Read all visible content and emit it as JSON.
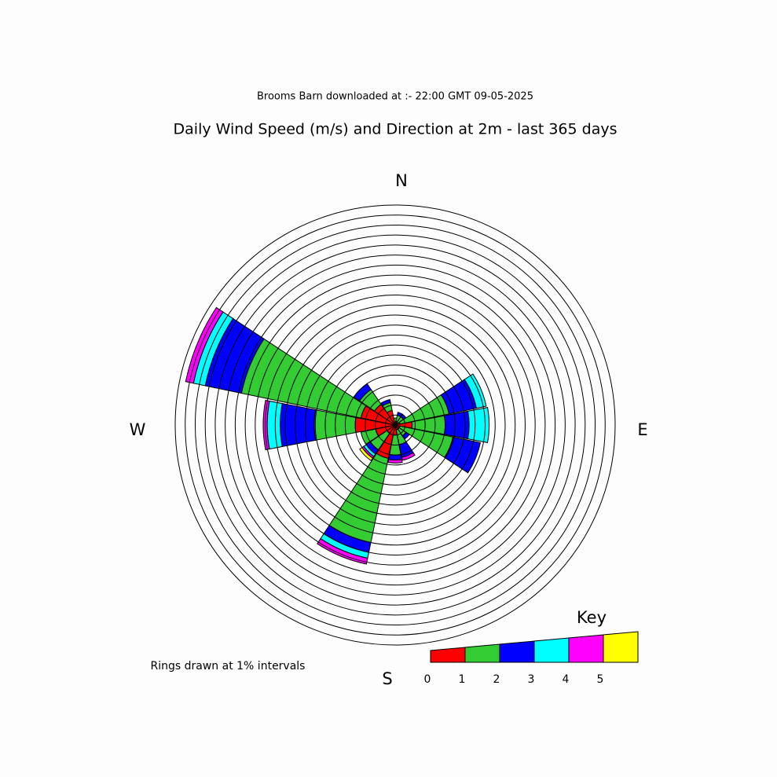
{
  "chart_data": {
    "type": "windrose",
    "subtitle": "Brooms Barn downloaded at :- 22:00 GMT 09-05-2025",
    "title": "Daily Wind Speed (m/s) and Direction at 2m - last 365 days",
    "compass": {
      "n": "N",
      "e": "E",
      "s": "S",
      "w": "W"
    },
    "note": "Rings drawn at 1% intervals",
    "categories": [
      null,
      null,
      null,
      null,
      null,
      null,
      null,
      null,
      null,
      null,
      null,
      null,
      null,
      null,
      null,
      null
    ],
    "series": [
      {
        "color": "#ff0000",
        "values": [
          0.3,
          0.4,
          0.3,
          0.5,
          1.7,
          0.5,
          0.5,
          0.5,
          1.0,
          3.4,
          1.0,
          2.0,
          4.0,
          3.5,
          2.5,
          1.5
        ]
      },
      {
        "color": "#33cc33",
        "values": [
          0.4,
          0.6,
          0.7,
          5.0,
          3.3,
          5.4,
          0.8,
          1.5,
          2.0,
          8.6,
          2.0,
          1.5,
          4.1,
          12.2,
          1.8,
          0.8
        ]
      },
      {
        "color": "#0000ff",
        "values": [
          0,
          0.3,
          0.3,
          2.8,
          2.4,
          2.8,
          0.4,
          1.3,
          0.5,
          1.0,
          0.5,
          0,
          3.4,
          3.7,
          0.7,
          0.3
        ]
      },
      {
        "color": "#00ffff",
        "values": [
          0,
          0,
          0,
          1.0,
          2.0,
          0,
          0,
          0,
          0,
          0.6,
          0.3,
          0,
          1.3,
          1.2,
          0,
          0
        ]
      },
      {
        "color": "#ff00ff",
        "values": [
          0,
          0,
          0,
          0,
          0,
          0,
          0,
          0.3,
          0.3,
          0.6,
          0.2,
          0,
          0.4,
          0.8,
          0,
          0
        ]
      },
      {
        "color": "#ffff00",
        "values": [
          0,
          0,
          0,
          0,
          0,
          0,
          0,
          0,
          0,
          0,
          0.3,
          0,
          0,
          0,
          0,
          0
        ]
      }
    ],
    "rlim": [
      0,
      22
    ],
    "rticks": [
      1,
      2,
      3,
      4,
      5,
      6,
      7,
      8,
      9,
      10,
      11,
      12,
      13,
      14,
      15,
      16,
      17,
      18,
      19,
      20,
      21,
      22
    ],
    "legend": {
      "title": "Key",
      "ticks": [
        0,
        1,
        2,
        3,
        4,
        5
      ]
    }
  }
}
